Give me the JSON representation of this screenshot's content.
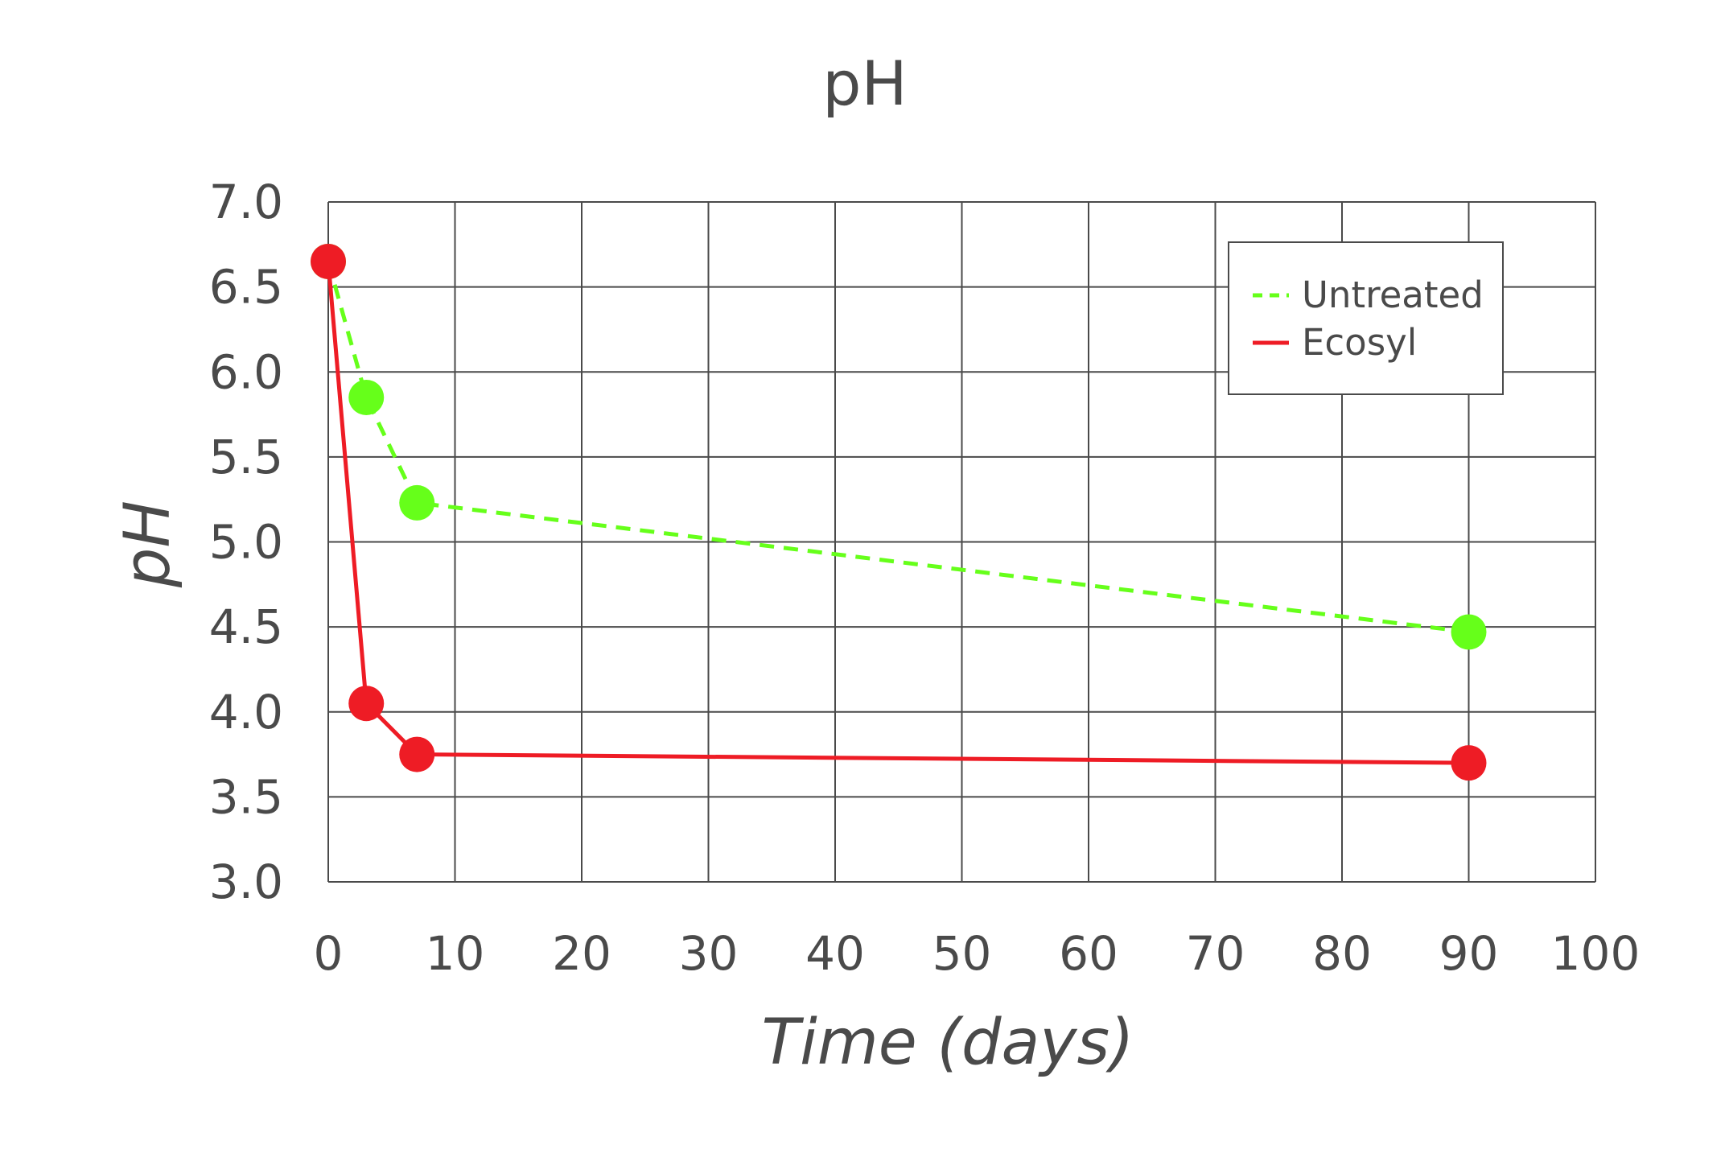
{
  "chart_data": {
    "type": "line",
    "title": "pH",
    "xlabel": "Time (days)",
    "ylabel": "pH",
    "xlim": [
      0,
      100
    ],
    "ylim": [
      3.0,
      7.0
    ],
    "x_ticks": [
      "0",
      "10",
      "20",
      "30",
      "40",
      "50",
      "60",
      "70",
      "80",
      "90",
      "100"
    ],
    "y_ticks": [
      "3.0",
      "3.5",
      "4.0",
      "4.5",
      "5.0",
      "5.5",
      "6.0",
      "6.5",
      "7.0"
    ],
    "grid": true,
    "legend_position": "top-right",
    "series": [
      {
        "name": "Untreated",
        "color": "#66ff1a",
        "line_style": "dashed",
        "x": [
          0,
          3,
          7,
          90
        ],
        "y": [
          6.65,
          5.85,
          5.23,
          4.47
        ]
      },
      {
        "name": "Ecosyl",
        "color": "#ee1c25",
        "line_style": "solid",
        "x": [
          0,
          3,
          7,
          90
        ],
        "y": [
          6.65,
          4.05,
          3.75,
          3.7
        ]
      }
    ]
  }
}
